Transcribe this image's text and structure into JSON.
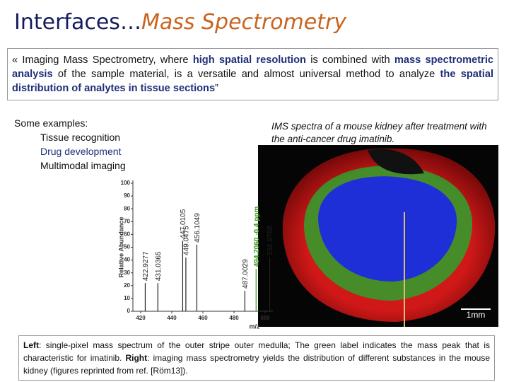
{
  "title": {
    "part1": "Interfaces…",
    "part2": "Mass Spectrometry"
  },
  "quote": {
    "segments": [
      {
        "text": "« Imaging Mass Spectrometry, where ",
        "bold": false
      },
      {
        "text": "high spatial resolution",
        "bold": true
      },
      {
        "text": " is combined with ",
        "bold": false
      },
      {
        "text": "mass spectrometric analysis",
        "bold": true
      },
      {
        "text": " of the sample material, is a versatile and almost universal method to analyze ",
        "bold": false
      },
      {
        "text": "the spatial distribution of analytes in tissue sections",
        "bold": true
      },
      {
        "text": "”",
        "bold": false
      }
    ]
  },
  "examples": {
    "heading": "Some examples:",
    "items": [
      {
        "text": "Tissue recognition",
        "color": "#111111"
      },
      {
        "text": "Drug development",
        "color": "#1f2f7a"
      },
      {
        "text": "Multimodal imaging",
        "color": "#111111"
      }
    ]
  },
  "image_caption": "IMS spectra of a mouse kidney after treatment with the anti-cancer drug imatinib.",
  "spectrum": {
    "y_label": "Relative Abundance",
    "x_label": "m/z",
    "xlim": [
      415,
      505
    ],
    "ylim": [
      0,
      100
    ],
    "xticks": [
      420,
      440,
      460,
      480,
      500
    ],
    "yticks": [
      0,
      10,
      20,
      30,
      40,
      50,
      60,
      70,
      80,
      90,
      100
    ],
    "peaks": [
      {
        "mz": 422.9277,
        "intensity": 22,
        "color": "#222222"
      },
      {
        "mz": 431.0365,
        "intensity": 22,
        "color": "#222222"
      },
      {
        "mz": 447.0105,
        "intensity": 55,
        "color": "#222222"
      },
      {
        "mz": 449.0475,
        "intensity": 42,
        "color": "#222222"
      },
      {
        "mz": 456.1049,
        "intensity": 52,
        "color": "#222222"
      },
      {
        "mz": 487.0029,
        "intensity": 16,
        "color": "#222222"
      },
      {
        "mz": {
          "value": 494.206,
          "label": "494.2060 -0.4 ppm"
        },
        "intensity": 33,
        "color": "#3a9a1a"
      },
      {
        "mz": 502.9768,
        "intensity": 42,
        "color": "#222222"
      }
    ]
  },
  "scale_bar": "1mm",
  "caption": {
    "segments": [
      {
        "text": "Left",
        "bold": true
      },
      {
        "text": ": single-pixel mass spectrum of the outer stripe outer medulla; The green label indicates the mass peak that is characteristic for imatinib. ",
        "bold": false
      },
      {
        "text": "Right",
        "bold": true
      },
      {
        "text": ": imaging mass spectrometry yields the distribution of different substances in the mouse kidney (figures reprinted from ref. [Röm13]).",
        "bold": false
      }
    ]
  }
}
